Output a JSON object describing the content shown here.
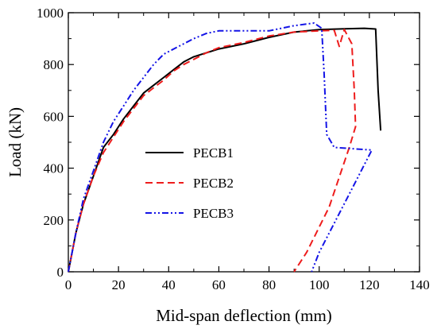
{
  "chart_data": {
    "type": "line",
    "title": "",
    "xlabel": "Mid-span deflection (mm)",
    "ylabel": "Load (kN)",
    "xlim": [
      0,
      140
    ],
    "ylim": [
      0,
      1000
    ],
    "xticks": [
      0,
      20,
      40,
      60,
      80,
      100,
      120,
      140
    ],
    "yticks": [
      0,
      200,
      400,
      600,
      800,
      1000
    ],
    "grid": false,
    "legend_position": "center",
    "series": [
      {
        "name": "PECB1",
        "color": "#000000",
        "dash": "solid",
        "points": [
          [
            0,
            0
          ],
          [
            3,
            150
          ],
          [
            6,
            260
          ],
          [
            10,
            370
          ],
          [
            14,
            480
          ],
          [
            18,
            530
          ],
          [
            22,
            590
          ],
          [
            26,
            640
          ],
          [
            30,
            690
          ],
          [
            34,
            720
          ],
          [
            38,
            750
          ],
          [
            42,
            780
          ],
          [
            46,
            810
          ],
          [
            50,
            830
          ],
          [
            55,
            845
          ],
          [
            60,
            860
          ],
          [
            70,
            880
          ],
          [
            80,
            905
          ],
          [
            90,
            925
          ],
          [
            100,
            935
          ],
          [
            110,
            938
          ],
          [
            118,
            940
          ],
          [
            122.5,
            937
          ],
          [
            123.5,
            700
          ],
          [
            124.5,
            545
          ]
        ]
      },
      {
        "name": "PECB2",
        "color": "#ee1c1c",
        "dash": "dashed",
        "points": [
          [
            0,
            0
          ],
          [
            3,
            150
          ],
          [
            6,
            260
          ],
          [
            10,
            370
          ],
          [
            14,
            460
          ],
          [
            18,
            520
          ],
          [
            22,
            580
          ],
          [
            26,
            630
          ],
          [
            30,
            680
          ],
          [
            34,
            710
          ],
          [
            38,
            740
          ],
          [
            42,
            775
          ],
          [
            46,
            800
          ],
          [
            50,
            820
          ],
          [
            55,
            845
          ],
          [
            60,
            865
          ],
          [
            70,
            885
          ],
          [
            80,
            910
          ],
          [
            90,
            925
          ],
          [
            100,
            930
          ],
          [
            106,
            932
          ],
          [
            108,
            870
          ],
          [
            110,
            935
          ],
          [
            113,
            880
          ],
          [
            114,
            700
          ],
          [
            114.5,
            560
          ],
          [
            112,
            480
          ],
          [
            104,
            250
          ],
          [
            95,
            75
          ],
          [
            90,
            0
          ]
        ]
      },
      {
        "name": "PECB3",
        "color": "#1414e6",
        "dash": "dashdotdot",
        "points": [
          [
            0,
            0
          ],
          [
            3,
            150
          ],
          [
            6,
            280
          ],
          [
            10,
            390
          ],
          [
            14,
            500
          ],
          [
            18,
            580
          ],
          [
            22,
            640
          ],
          [
            26,
            700
          ],
          [
            30,
            750
          ],
          [
            34,
            800
          ],
          [
            38,
            840
          ],
          [
            42,
            860
          ],
          [
            46,
            880
          ],
          [
            50,
            900
          ],
          [
            55,
            920
          ],
          [
            60,
            930
          ],
          [
            70,
            930
          ],
          [
            80,
            930
          ],
          [
            90,
            950
          ],
          [
            98,
            960
          ],
          [
            101,
            940
          ],
          [
            102,
            760
          ],
          [
            103,
            530
          ],
          [
            106,
            480
          ],
          [
            121,
            470
          ],
          [
            112,
            300
          ],
          [
            100,
            75
          ],
          [
            97,
            0
          ]
        ]
      }
    ]
  }
}
